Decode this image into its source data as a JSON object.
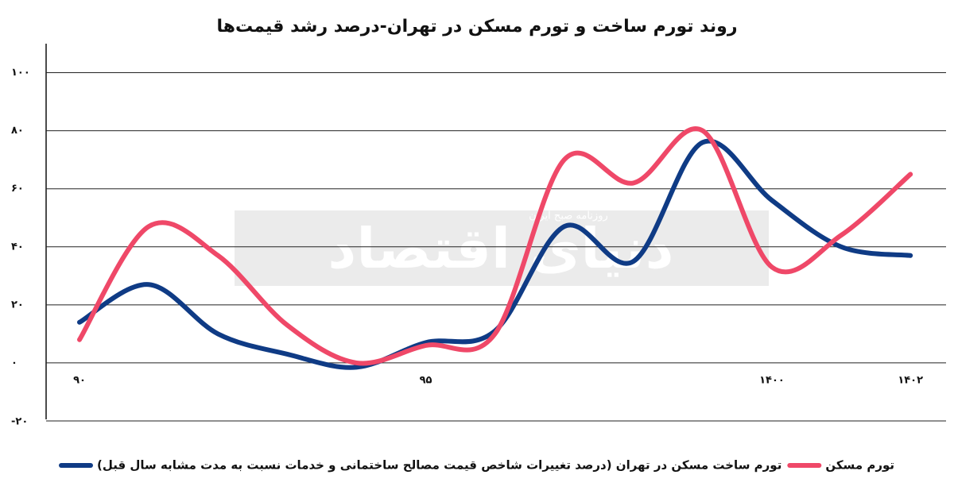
{
  "chart_data": {
    "type": "line",
    "title": "روند تورم ساخت و تورم مسکن در تهران-درصد رشد قیمت‌ها",
    "categories": [
      "۹۰",
      null,
      null,
      null,
      null,
      "۹۵",
      null,
      null,
      null,
      null,
      "۱۴۰۰",
      null,
      "۱۴۰۲"
    ],
    "series": [
      {
        "name": "تورم ساخت مسکن در تهران (درصد تغییرات شاخص قیمت مصالح ساختمانی و خدمات نسبت به مدت مشابه سال قبل)",
        "color": "#0f3b85",
        "values": [
          14,
          27,
          10,
          3,
          -1.5,
          7,
          11,
          47,
          35,
          76,
          56,
          40,
          37
        ]
      },
      {
        "name": "تورم مسکن",
        "color": "#ef4868",
        "values": [
          8,
          47,
          37,
          13,
          0,
          6,
          10,
          70,
          62,
          80,
          33,
          44,
          65
        ]
      }
    ],
    "ylim": [
      -20,
      110
    ],
    "yticks": [
      {
        "value": -20,
        "label": "-۲۰"
      },
      {
        "value": 0,
        "label": "۰"
      },
      {
        "value": 20,
        "label": "۲۰"
      },
      {
        "value": 40,
        "label": "۴۰"
      },
      {
        "value": 60,
        "label": "۶۰"
      },
      {
        "value": 80,
        "label": "۸۰"
      },
      {
        "value": 100,
        "label": "۱۰۰"
      }
    ],
    "grid": true,
    "smooth": true,
    "watermark": {
      "brand": "دنیای اقتصاد",
      "tagline": "روزنامه صبح ایران"
    }
  }
}
